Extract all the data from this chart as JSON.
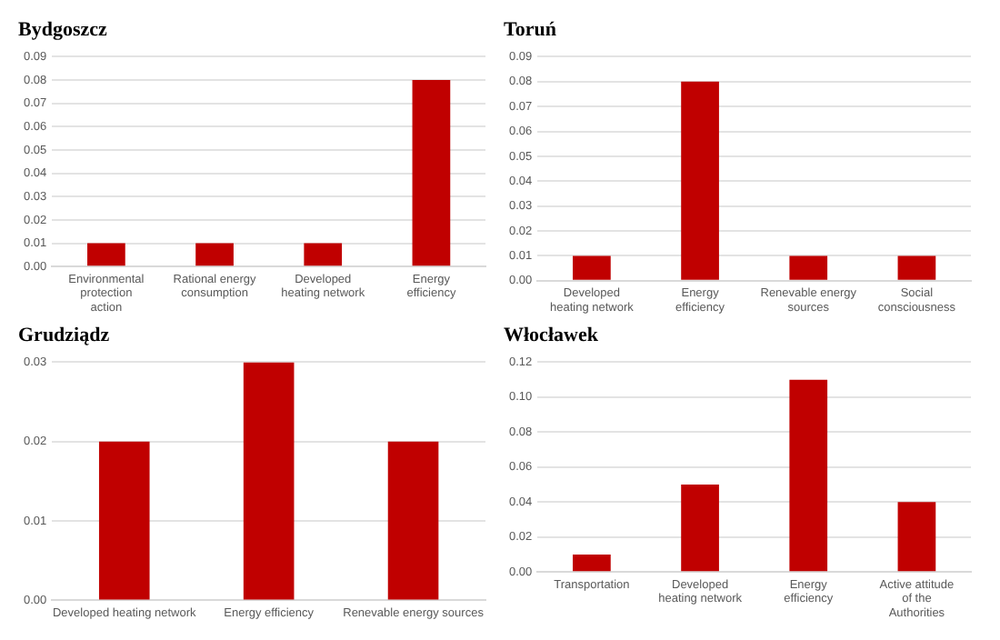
{
  "chart_data": [
    {
      "type": "bar",
      "title": "Bydgoszcz",
      "categories": [
        "Environmental protection action",
        "Rational energy consumption",
        "Developed heating network",
        "Energy efficiency"
      ],
      "values": [
        0.01,
        0.01,
        0.01,
        0.08
      ],
      "color": "#c00000",
      "ylim": [
        0,
        0.09
      ],
      "yticks": [
        {
          "value": 0,
          "label": "0.00"
        },
        {
          "value": 0.01,
          "label": "0.01"
        },
        {
          "value": 0.02,
          "label": "0.02"
        },
        {
          "value": 0.03,
          "label": "0.03"
        },
        {
          "value": 0.04,
          "label": "0.04"
        },
        {
          "value": 0.05,
          "label": "0.05"
        },
        {
          "value": 0.06,
          "label": "0.06"
        },
        {
          "value": 0.07,
          "label": "0.07"
        },
        {
          "value": 0.08,
          "label": "0.08"
        },
        {
          "value": 0.09,
          "label": "0.09"
        }
      ],
      "grid": "y",
      "legend": false
    },
    {
      "type": "bar",
      "title": "Toruń",
      "categories": [
        "Developed heating network",
        "Energy efficiency",
        "Renevable energy sources",
        "Social consciousness"
      ],
      "values": [
        0.01,
        0.08,
        0.01,
        0.01
      ],
      "color": "#c00000",
      "ylim": [
        0,
        0.09
      ],
      "yticks": [
        {
          "value": 0,
          "label": "0.00"
        },
        {
          "value": 0.01,
          "label": "0.01"
        },
        {
          "value": 0.02,
          "label": "0.02"
        },
        {
          "value": 0.03,
          "label": "0.03"
        },
        {
          "value": 0.04,
          "label": "0.04"
        },
        {
          "value": 0.05,
          "label": "0.05"
        },
        {
          "value": 0.06,
          "label": "0.06"
        },
        {
          "value": 0.07,
          "label": "0.07"
        },
        {
          "value": 0.08,
          "label": "0.08"
        },
        {
          "value": 0.09,
          "label": "0.09"
        }
      ],
      "grid": "y",
      "legend": false
    },
    {
      "type": "bar",
      "title": "Grudziądz",
      "categories": [
        "Developed heating network",
        "Energy efficiency",
        "Renevable energy sources"
      ],
      "values": [
        0.02,
        0.03,
        0.02
      ],
      "color": "#c00000",
      "ylim": [
        0,
        0.03
      ],
      "yticks": [
        {
          "value": 0,
          "label": "0.00"
        },
        {
          "value": 0.01,
          "label": "0.01"
        },
        {
          "value": 0.02,
          "label": "0.02"
        },
        {
          "value": 0.03,
          "label": "0.03"
        }
      ],
      "grid": "y",
      "legend": false
    },
    {
      "type": "bar",
      "title": "Włocławek",
      "categories": [
        "Transportation",
        "Developed heating network",
        "Energy efficiency",
        "Active attitude of the Authorities"
      ],
      "values": [
        0.01,
        0.05,
        0.11,
        0.04
      ],
      "color": "#c00000",
      "ylim": [
        0,
        0.12
      ],
      "yticks": [
        {
          "value": 0,
          "label": "0.00"
        },
        {
          "value": 0.02,
          "label": "0.02"
        },
        {
          "value": 0.04,
          "label": "0.04"
        },
        {
          "value": 0.06,
          "label": "0.06"
        },
        {
          "value": 0.08,
          "label": "0.08"
        },
        {
          "value": 0.1,
          "label": "0.10"
        },
        {
          "value": 0.12,
          "label": "0.12"
        }
      ],
      "grid": "y",
      "legend": false
    }
  ]
}
